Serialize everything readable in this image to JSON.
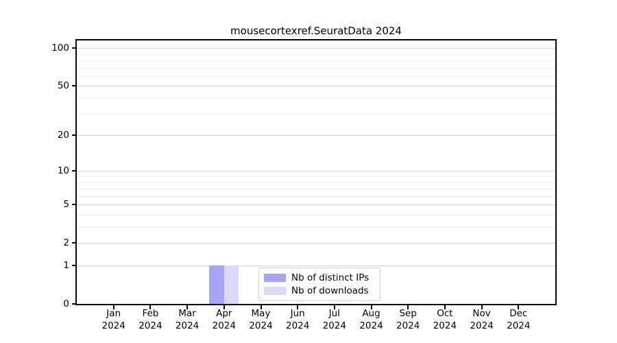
{
  "figure": {
    "background": "#ffffff"
  },
  "chart_data": {
    "type": "bar",
    "title": "mousecortexref.SeuratData 2024",
    "x": {
      "months": [
        "Jan",
        "Feb",
        "Mar",
        "Apr",
        "May",
        "Jun",
        "Jul",
        "Aug",
        "Sep",
        "Oct",
        "Nov",
        "Dec"
      ],
      "year": "2024"
    },
    "series": [
      {
        "name": "Nb of distinct IPs",
        "color": "#a5a5f5",
        "values": [
          0,
          0,
          0,
          1,
          0,
          0,
          0,
          0,
          0,
          0,
          0,
          0
        ]
      },
      {
        "name": "Nb of downloads",
        "color": "#dadaf8",
        "values": [
          0,
          0,
          0,
          1,
          0,
          0,
          0,
          0,
          0,
          0,
          0,
          0
        ]
      }
    ],
    "y_axis": {
      "scale": "log1p",
      "tick_labels": [
        100,
        50,
        20,
        10,
        5,
        2,
        1,
        0
      ],
      "major_grid_values": [
        1,
        2,
        5,
        10,
        20,
        50,
        100
      ],
      "minor_grid_values": [
        3,
        4,
        6,
        7,
        8,
        9,
        30,
        40,
        60,
        70,
        80,
        90
      ],
      "ylim": [
        0,
        115
      ]
    },
    "grid": "horizontal",
    "legend_position": "lower center"
  },
  "style": {
    "axis_color": "#000000",
    "major_grid_color": "#d2d2d2",
    "minor_grid_color": "#ebebeb",
    "legend_border_color": "#cccccc",
    "text_color": "#000000"
  }
}
